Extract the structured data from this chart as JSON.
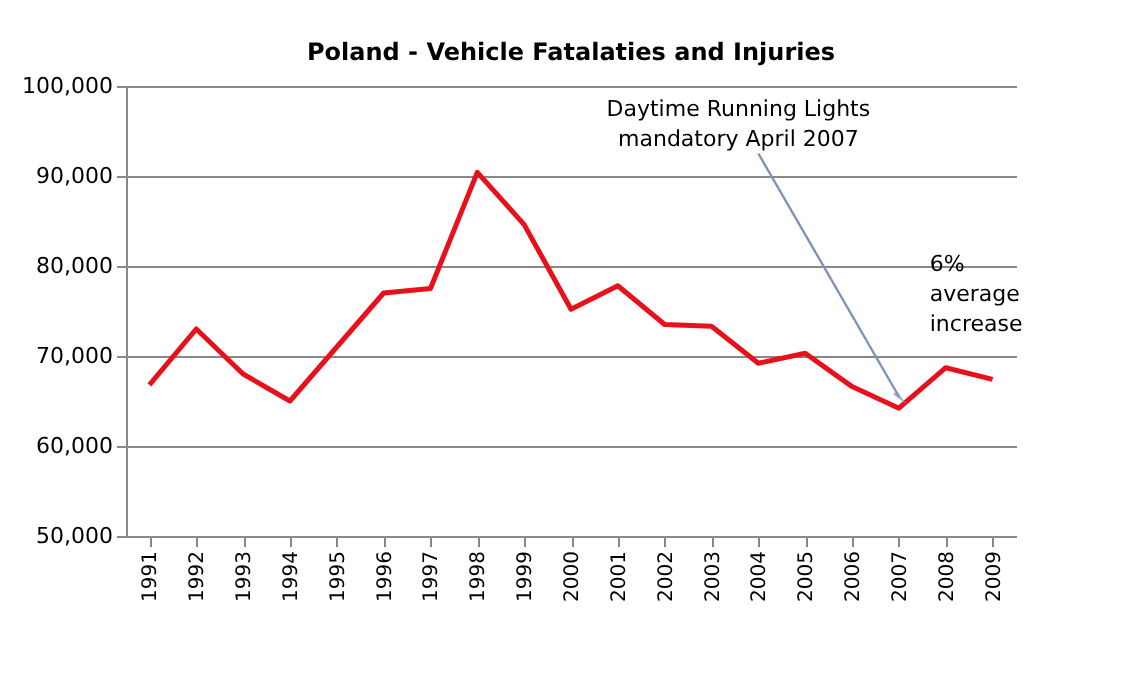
{
  "chart_data": {
    "type": "line",
    "title": "Poland - Vehicle Fatalaties and Injuries",
    "categories": [
      "1991",
      "1992",
      "1993",
      "1994",
      "1995",
      "1996",
      "1997",
      "1998",
      "1999",
      "2000",
      "2001",
      "2002",
      "2003",
      "2004",
      "2005",
      "2006",
      "2007",
      "2008",
      "2009"
    ],
    "series": [
      {
        "color": "#e8101a",
        "values": [
          66800,
          73000,
          68000,
          65000,
          71000,
          77000,
          77500,
          90400,
          84600,
          75200,
          77800,
          73500,
          73300,
          69200,
          70300,
          66600,
          64200,
          68700,
          67400
        ]
      }
    ],
    "ylim": [
      50000,
      100000
    ],
    "yticks": [
      {
        "value": 50000,
        "label": "50,000"
      },
      {
        "value": 60000,
        "label": "60,000"
      },
      {
        "value": 70000,
        "label": "70,000"
      },
      {
        "value": 80000,
        "label": "80,000"
      },
      {
        "value": 90000,
        "label": "90,000"
      },
      {
        "value": 100000,
        "label": "100,000"
      }
    ],
    "grid": "y",
    "marker": "none",
    "line_style": "solid",
    "annotations": [
      {
        "text": "Daytime Running Lights\nmandatory  April 2007",
        "x": "2007",
        "y": 65500
      },
      "6%\naverage\n increase"
    ]
  }
}
